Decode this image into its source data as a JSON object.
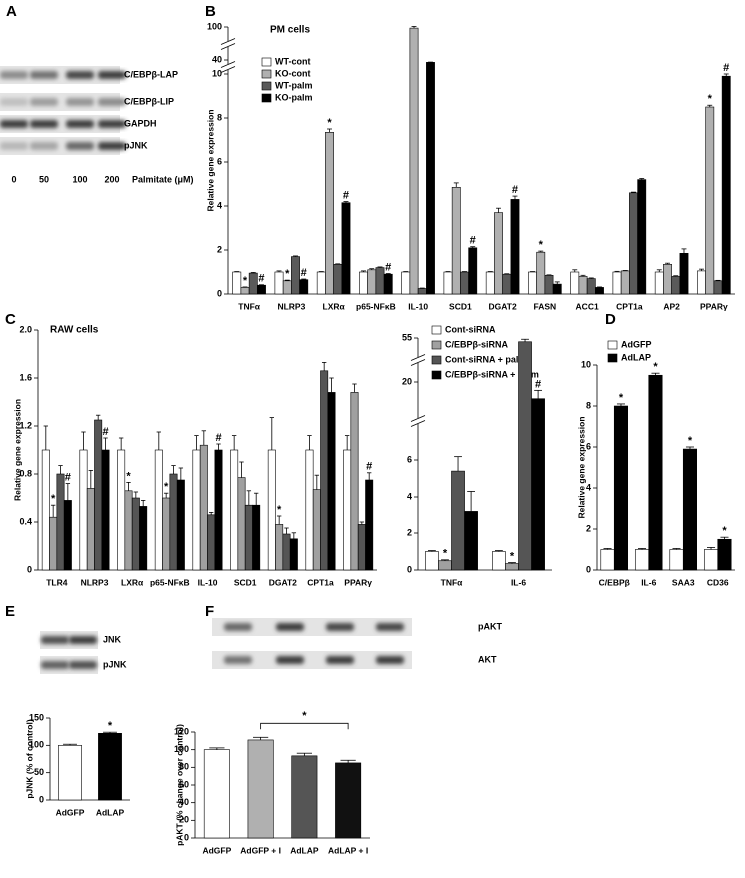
{
  "panel_labels": [
    "A",
    "B",
    "C",
    "D",
    "E",
    "F"
  ],
  "blots": {
    "A": {
      "bands": [
        "C/EBPβ-LAP",
        "C/EBPβ-LIP",
        "GAPDH",
        "pJNK"
      ],
      "lanes": [
        0,
        50,
        100,
        200
      ],
      "lane_label": "Palmitate (μM)"
    },
    "E": {
      "bands": [
        "JNK",
        "pJNK"
      ]
    },
    "F": {
      "bands": [
        "pAKT",
        "AKT"
      ]
    }
  },
  "chart_data": [
    {
      "type": "bar",
      "title": "PM cells",
      "ylabel": "Relative gene expression",
      "broken_axis": true,
      "categories": [
        "TNFα",
        "NLRP3",
        "LXRα",
        "p65-NFκB",
        "IL-10",
        "SCD1",
        "DGAT2",
        "FASN",
        "ACC1",
        "CPT1a",
        "AP2",
        "PPARγ"
      ],
      "ylim": [
        0,
        100
      ],
      "yticks": [
        0,
        2,
        4,
        6,
        8,
        10,
        40,
        100
      ],
      "series": [
        {
          "name": "WT-cont",
          "color": "#ffffff",
          "values": [
            1,
            1,
            1,
            1,
            1,
            1,
            1,
            1,
            1,
            1,
            1,
            1.05
          ],
          "errors": [
            0.02,
            0.05,
            0.02,
            0.05,
            0.02,
            0.02,
            0.02,
            0.02,
            0.1,
            0.03,
            0.1,
            0.08
          ],
          "markers": [
            null,
            null,
            null,
            null,
            null,
            null,
            null,
            null,
            null,
            null,
            null,
            null
          ]
        },
        {
          "name": "KO-cont",
          "color": "#b0b0b0",
          "values": [
            0.3,
            0.6,
            7.35,
            1.1,
            98,
            4.85,
            3.7,
            1.9,
            0.8,
            1.05,
            1.35,
            8.5
          ],
          "errors": [
            0.02,
            0.03,
            0.15,
            0.05,
            3,
            0.2,
            0.2,
            0.05,
            0.05,
            0.02,
            0.05,
            0.08
          ],
          "markers": [
            "*",
            "*",
            "*",
            null,
            null,
            null,
            null,
            "*",
            null,
            null,
            null,
            "*"
          ]
        },
        {
          "name": "WT-palm",
          "color": "#5a5a5a",
          "values": [
            0.95,
            1.7,
            1.35,
            1.2,
            0.25,
            1,
            0.9,
            0.85,
            0.7,
            4.6,
            0.8,
            0.6
          ],
          "errors": [
            0.03,
            0.03,
            0.02,
            0.03,
            0.02,
            0.02,
            0.02,
            0.02,
            0.03,
            0.03,
            0.03,
            0.02
          ],
          "markers": [
            null,
            null,
            null,
            null,
            null,
            null,
            null,
            null,
            null,
            null,
            null,
            null
          ]
        },
        {
          "name": "KO-palm",
          "color": "#000000",
          "values": [
            0.4,
            0.65,
            4.15,
            0.9,
            35,
            2.1,
            4.3,
            0.45,
            0.3,
            5.2,
            1.85,
            9.9
          ],
          "errors": [
            0.02,
            0.03,
            0.05,
            0.03,
            0.5,
            0.05,
            0.15,
            0.1,
            0.02,
            0.05,
            0.2,
            0.15
          ],
          "markers": [
            "#",
            "#",
            "#",
            "#",
            null,
            "#",
            "#",
            null,
            null,
            null,
            null,
            "#"
          ]
        }
      ]
    },
    {
      "type": "bar",
      "title": "RAW cells",
      "ylabel": "Relative gene expression",
      "categories": [
        "TLR4",
        "NLRP3",
        "LXRα",
        "p65-NFκB",
        "IL-10",
        "SCD1",
        "DGAT2",
        "CPT1a",
        "PPARγ"
      ],
      "ylim": [
        0,
        2
      ],
      "yticks": [
        0,
        0.4,
        0.8,
        1.2,
        1.6,
        {
          "value": 2,
          "label": "2.0"
        }
      ],
      "series": [
        {
          "name": "Cont-siRNA",
          "color": "#ffffff",
          "values": [
            1,
            1,
            1,
            1,
            1,
            1,
            1,
            1,
            1
          ],
          "errors": [
            0.2,
            0.15,
            0.1,
            0.15,
            0.12,
            0.12,
            0.27,
            0.12,
            0.12
          ],
          "markers": [
            null,
            null,
            null,
            null,
            null,
            null,
            null,
            null,
            null
          ]
        },
        {
          "name": "C/EBPβ-siRNA",
          "color": "#a0a0a0",
          "values": [
            0.44,
            0.68,
            0.66,
            0.6,
            1.04,
            0.77,
            0.38,
            0.67,
            1.48
          ],
          "errors": [
            0.1,
            0.15,
            0.07,
            0.04,
            0.12,
            0.13,
            0.07,
            0.12,
            0.07
          ],
          "markers": [
            "*",
            null,
            "*",
            "*",
            null,
            null,
            "*",
            null,
            null
          ]
        },
        {
          "name": "Cont-siRNA + palm",
          "color": "#555555",
          "values": [
            0.8,
            1.25,
            0.6,
            0.8,
            0.46,
            0.54,
            0.3,
            1.66,
            0.38
          ],
          "errors": [
            0.07,
            0.04,
            0.05,
            0.07,
            0.02,
            0.12,
            0.05,
            0.07,
            0.02
          ],
          "markers": [
            null,
            null,
            null,
            null,
            null,
            null,
            null,
            null,
            null
          ]
        },
        {
          "name": "C/EBPβ-siRNA + palm",
          "color": "#000000",
          "values": [
            0.58,
            1,
            0.53,
            0.75,
            1,
            0.54,
            0.26,
            1.48,
            0.75
          ],
          "errors": [
            0.14,
            0.1,
            0.05,
            0.1,
            0.05,
            0.1,
            0.05,
            0.12,
            0.06
          ],
          "markers": [
            "#",
            "#",
            null,
            null,
            "#",
            null,
            null,
            null,
            "#"
          ]
        }
      ]
    },
    {
      "type": "bar",
      "broken_axis": true,
      "categories": [
        "TNFα",
        "IL-6"
      ],
      "ylim": [
        0,
        55
      ],
      "yticks": [
        0,
        2,
        4,
        6,
        20,
        55
      ],
      "series": [
        {
          "name": "Cont-siRNA",
          "color": "#ffffff",
          "values": [
            1,
            1
          ],
          "errors": [
            0.05,
            0.05
          ],
          "markers": [
            null,
            null
          ]
        },
        {
          "name": "C/EBPβ-siRNA",
          "color": "#a0a0a0",
          "values": [
            0.5,
            0.35
          ],
          "errors": [
            0.05,
            0.05
          ],
          "markers": [
            "*",
            "*"
          ]
        },
        {
          "name": "Cont-siRNA + palm",
          "color": "#555555",
          "values": [
            5.4,
            52
          ],
          "errors": [
            1.2,
            2
          ],
          "markers": [
            null,
            null
          ]
        },
        {
          "name": "C/EBPβ-siRNA + palm",
          "color": "#000000",
          "values": [
            3.2,
            17
          ],
          "errors": [
            1.1,
            1.5
          ],
          "markers": [
            null,
            "#"
          ]
        }
      ]
    },
    {
      "type": "bar",
      "ylabel": "Relative gene expression",
      "categories": [
        "C/EBPβ",
        "IL-6",
        "SAA3",
        "CD36"
      ],
      "ylim": [
        0,
        10
      ],
      "yticks": [
        0,
        2,
        4,
        6,
        8,
        10
      ],
      "series": [
        {
          "name": "AdGFP",
          "color": "#ffffff",
          "values": [
            1,
            1,
            1,
            1
          ],
          "errors": [
            0.05,
            0.05,
            0.05,
            0.1
          ],
          "markers": [
            null,
            null,
            null,
            null
          ]
        },
        {
          "name": "AdLAP",
          "color": "#000000",
          "values": [
            8,
            9.5,
            5.9,
            1.5
          ],
          "errors": [
            0.1,
            0.1,
            0.1,
            0.1
          ],
          "markers": [
            "*",
            "*",
            "*",
            "*"
          ]
        }
      ]
    },
    {
      "type": "bar",
      "ylabel": "pJNK (% of control)",
      "categories": [
        "AdGFP",
        "AdLAP"
      ],
      "values": [
        100,
        122
      ],
      "errors": [
        2,
        2
      ],
      "colors": [
        "#ffffff",
        "#000000"
      ],
      "markers": [
        null,
        "*"
      ],
      "ylim": [
        0,
        150
      ],
      "yticks": [
        0,
        50,
        100,
        150
      ]
    },
    {
      "type": "bar",
      "ylabel": "pAKT (% change over control)",
      "categories": [
        "AdGFP",
        "AdGFP + I",
        "AdLAP",
        "AdLAP + I"
      ],
      "values": [
        100,
        111,
        93,
        85
      ],
      "errors": [
        2,
        3,
        3,
        3
      ],
      "colors": [
        "#ffffff",
        "#b0b0b0",
        "#555555",
        "#111111"
      ],
      "comparison": {
        "between": [
          1,
          3
        ],
        "label": "*"
      },
      "ylim": [
        0,
        120
      ],
      "yticks": [
        0,
        20,
        40,
        60,
        80,
        100,
        120
      ]
    }
  ]
}
